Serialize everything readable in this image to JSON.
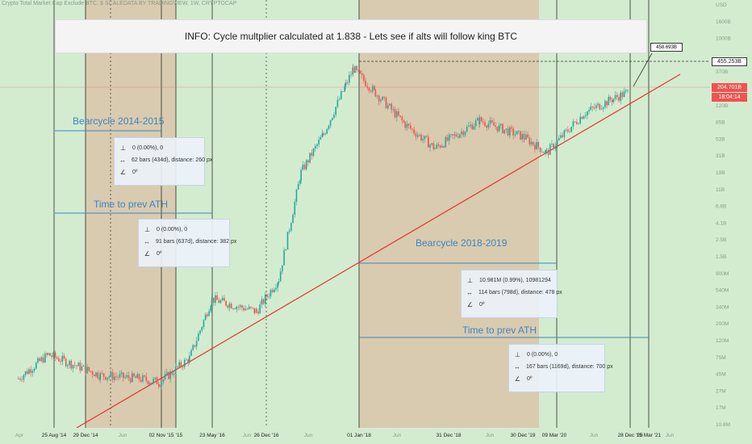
{
  "header": {
    "title": "Crypto Total Market Cap Exclude BTC, $ SCALEDATA BY TRADINGVIEW, 1W, CRYPTOCAP"
  },
  "info_text": "INFO: Cycle multplier calculated at 1.838 - Lets see if alts will follow king BTC",
  "labels": {
    "bear_2014": "Bearcycle 2014-2015",
    "prev_ath_1": "Time to prev ATH",
    "bear_2018": "Bearcycle 2018-2019",
    "prev_ath_2": "Time to prev ATH"
  },
  "measures": [
    {
      "price": "0 (0.00%), 0",
      "bars": "62 bars (434d), distance: 260 px",
      "angle": "0º"
    },
    {
      "price": "0 (0.00%), 0",
      "bars": "91 bars (637d), distance: 382 px",
      "angle": "0º"
    },
    {
      "price": "10.981M (0.99%), 10981294",
      "bars": "114 bars (798d), distance: 478 px",
      "angle": "0º"
    },
    {
      "price": "0 (0.00%), 0",
      "bars": "167 bars (1169d), distance: 700 px",
      "angle": "0º"
    }
  ],
  "price_boxes": {
    "target": "458.693B",
    "ath_line": "455.253B",
    "current": "204.701B",
    "countdown": "18:04:14"
  },
  "colors": {
    "background": "#d3ecd0",
    "shade": "#d9c6a9",
    "trendline": "#e8302a",
    "up_candle": "#26a69a",
    "down_candle": "#ef5350",
    "label": "#3d84c6",
    "current_box": "#ef5350"
  },
  "chart_data": {
    "type": "candlestick",
    "title": "Crypto Total Market Cap Exclude BTC",
    "timeframe": "1W",
    "y_scale": "log",
    "y_ticks": [
      "USD",
      "1600B",
      "1000B",
      "",
      "370B",
      "",
      "120B",
      "85B",
      "53B",
      "31B",
      "19B",
      "11B",
      "6.6B",
      "4.1B",
      "2.5B",
      "1.5B",
      "900M",
      "540M",
      "340M",
      "200M",
      "120M",
      "75M",
      "45M",
      "27M",
      "17M",
      "10.6M"
    ],
    "x_ticks": [
      "Apr",
      "25 Aug '14",
      "29 Dec '14",
      "Jun",
      "02 Nov '15",
      "'15",
      "23 May '16",
      "Jun",
      "26 Dec '16",
      "Jun",
      "01 Jan '18",
      "Jun",
      "31 Dec '18",
      "Jun",
      "30 Dec '19",
      "09 Mar '20",
      "Jun",
      "28 Dec '20",
      "15 Mar '21",
      "Jun"
    ],
    "approx_close_billions": [
      [
        "2014-04",
        0.05
      ],
      [
        "2014-08",
        0.1
      ],
      [
        "2015-03",
        0.055
      ],
      [
        "2015-08",
        0.05
      ],
      [
        "2015-11",
        0.045
      ],
      [
        "2016-03",
        0.09
      ],
      [
        "2016-06",
        0.5
      ],
      [
        "2016-12",
        0.35
      ],
      [
        "2017-03",
        0.9
      ],
      [
        "2017-06",
        20
      ],
      [
        "2017-09",
        60
      ],
      [
        "2017-12",
        250
      ],
      [
        "2018-01",
        400
      ],
      [
        "2018-04",
        200
      ],
      [
        "2018-08",
        80
      ],
      [
        "2018-12",
        40
      ],
      [
        "2019-06",
        90
      ],
      [
        "2019-12",
        55
      ],
      [
        "2020-03",
        35
      ],
      [
        "2020-08",
        110
      ],
      [
        "2020-12",
        170
      ],
      [
        "2021-02",
        204.7
      ]
    ],
    "cycle_multiplier": 1.838,
    "shaded_periods": [
      [
        "2014-12-29",
        "2015-11-02"
      ],
      [
        "2018-01-01",
        "2019-12-30"
      ]
    ],
    "horizontal_levels_billions": {
      "target": 458.693,
      "ath": 455.253,
      "current": 204.701
    }
  }
}
